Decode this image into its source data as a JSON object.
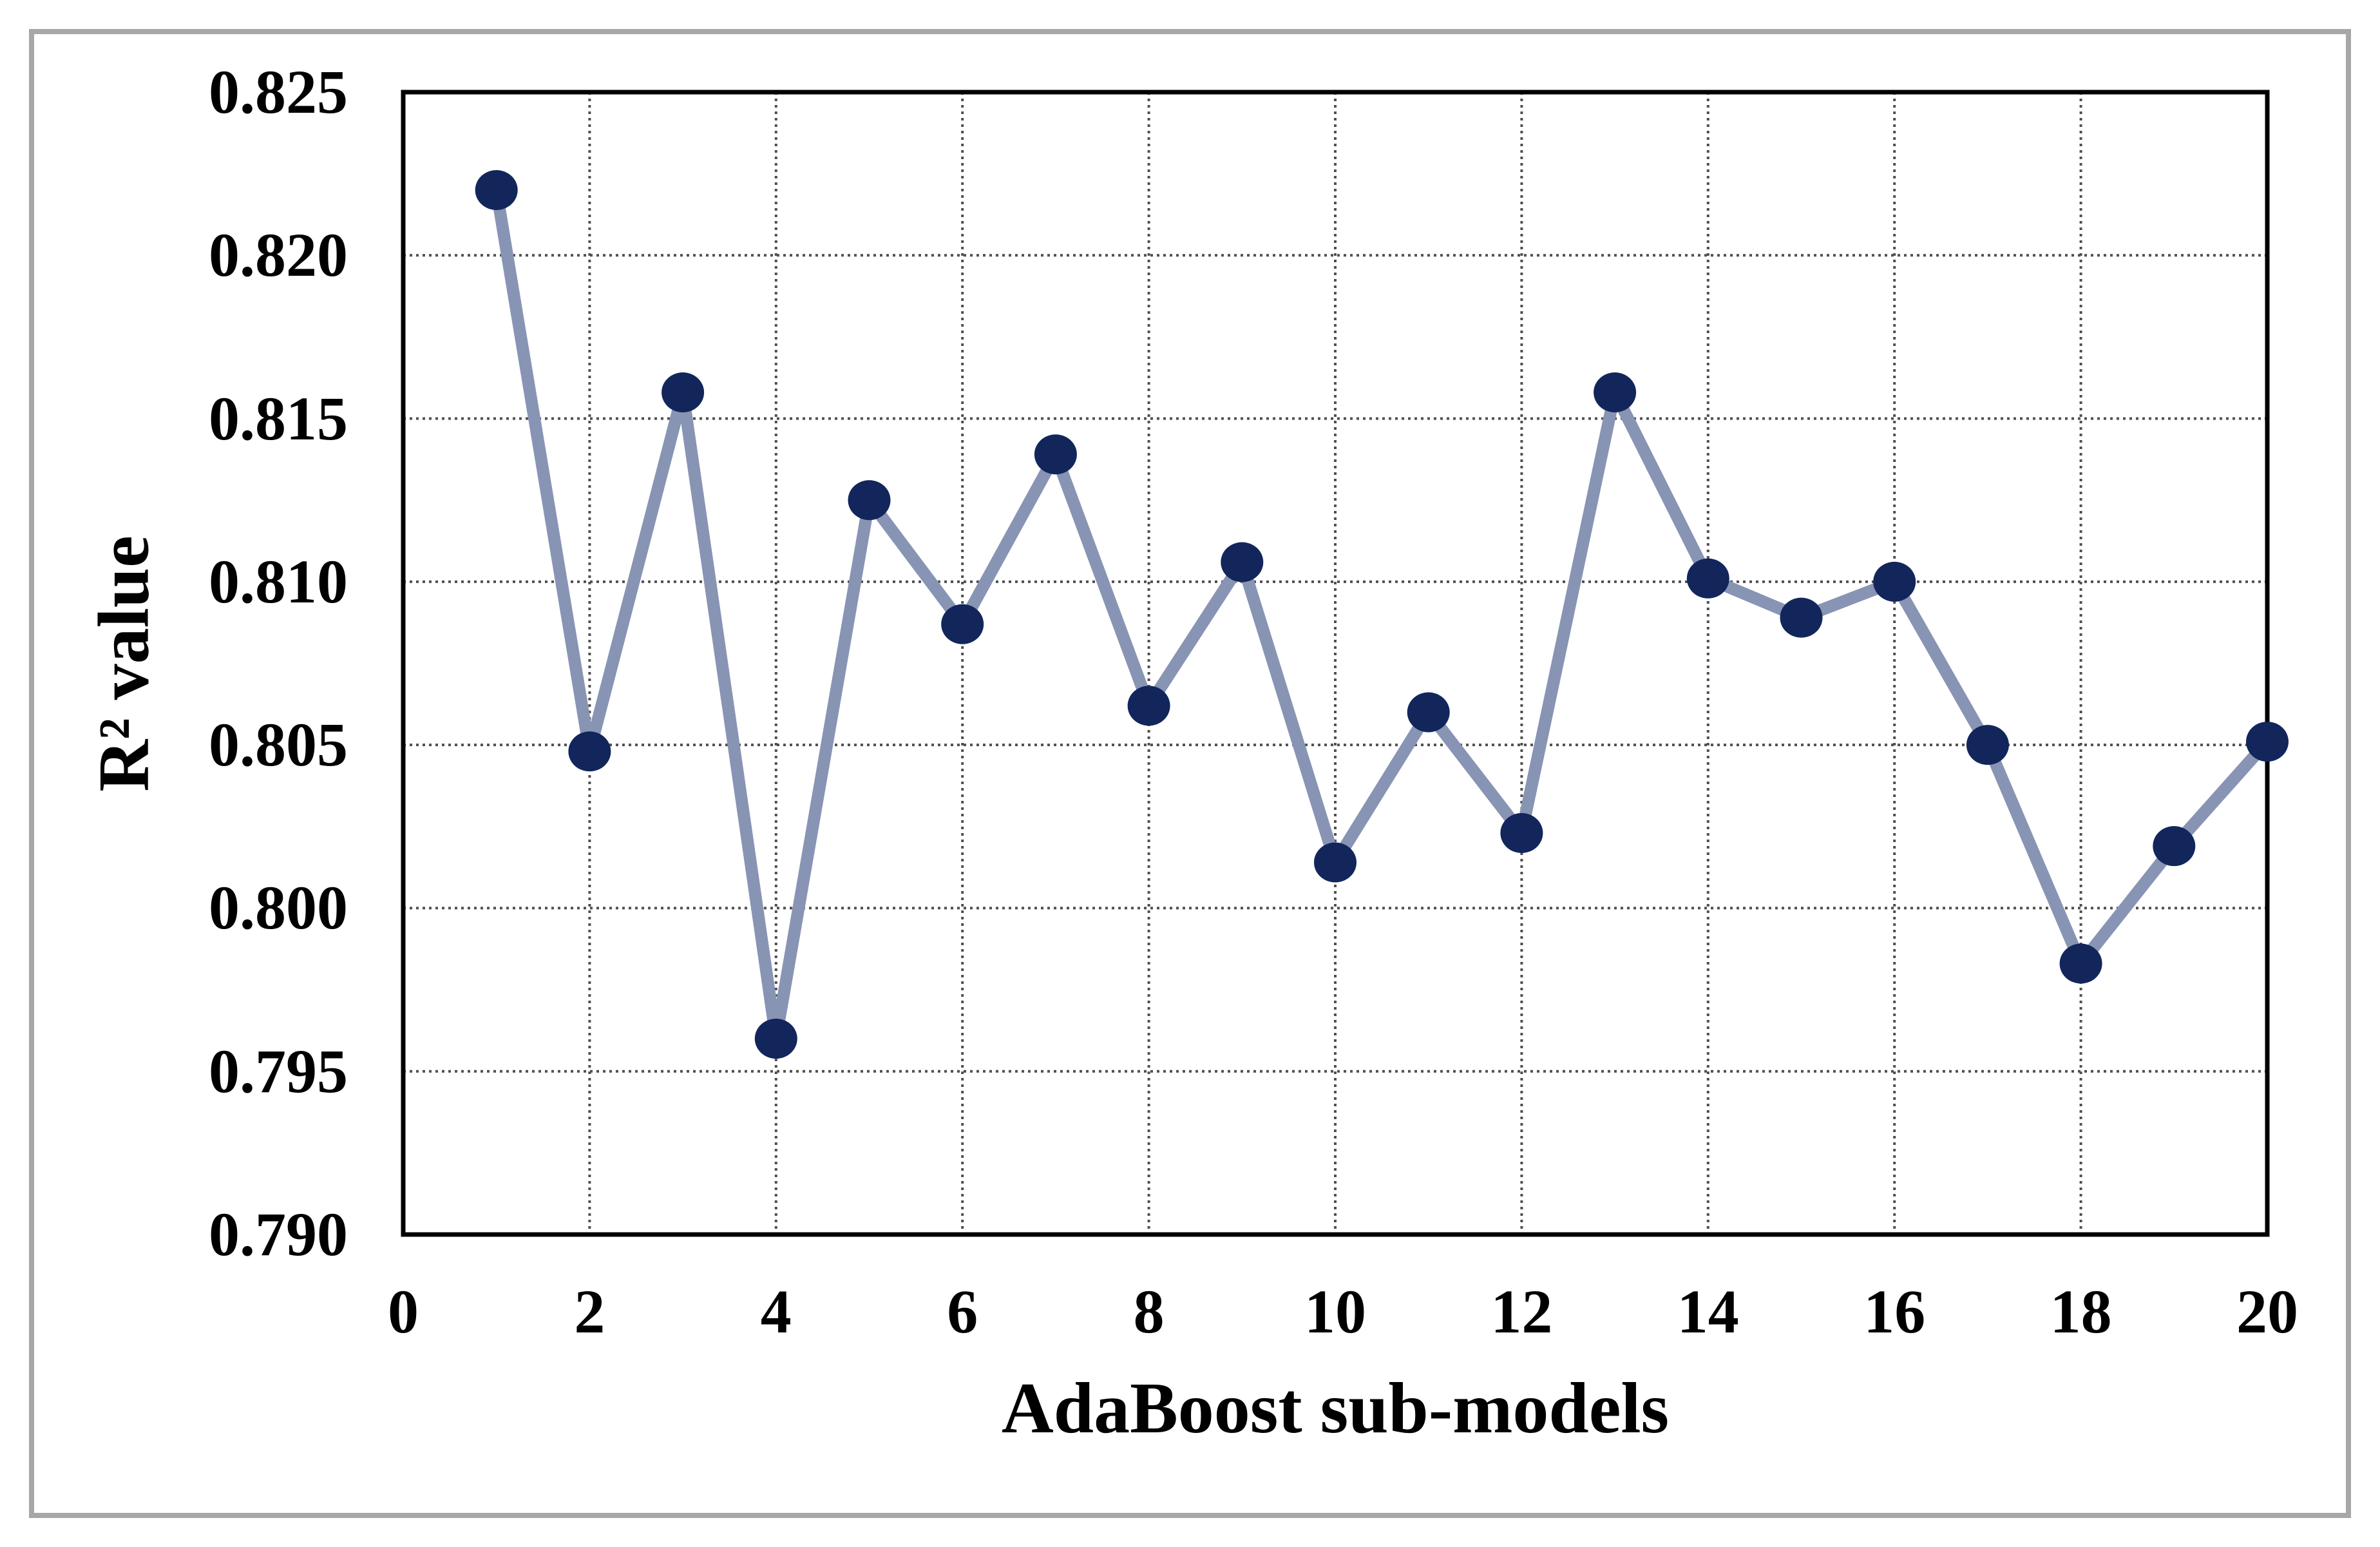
{
  "figure": {
    "outer_border_color": "#a7a7a7",
    "background_color": "#ffffff",
    "plot_border_color": "#000000",
    "gridline_color": "#4f4f4f"
  },
  "chart_data": {
    "type": "line",
    "title": "",
    "xlabel": "AdaBoost sub-models",
    "ylabel": "R² value",
    "x": [
      1,
      2,
      3,
      4,
      5,
      6,
      7,
      8,
      9,
      10,
      11,
      12,
      13,
      14,
      15,
      16,
      17,
      18,
      19,
      20
    ],
    "y": [
      0.822,
      0.8048,
      0.8158,
      0.796,
      0.8125,
      0.8087,
      0.8139,
      0.8062,
      0.8106,
      0.8014,
      0.806,
      0.8023,
      0.8158,
      0.8101,
      0.8089,
      0.81,
      0.805,
      0.7983,
      0.8019,
      0.8051
    ],
    "xlim": [
      0,
      20
    ],
    "ylim": [
      0.79,
      0.825
    ],
    "x_ticks": [
      0,
      2,
      4,
      6,
      8,
      10,
      12,
      14,
      16,
      18,
      20
    ],
    "y_ticks": [
      0.79,
      0.795,
      0.8,
      0.805,
      0.81,
      0.815,
      0.82,
      0.825
    ],
    "y_tick_decimals": 3,
    "grid": {
      "horizontal": true,
      "vertical": true,
      "style": "dotted"
    },
    "legend_position": "none",
    "series": [
      {
        "name": "R² value",
        "marker": "circle",
        "marker_color": "#12265c",
        "line_color": "#8894b4"
      }
    ]
  }
}
